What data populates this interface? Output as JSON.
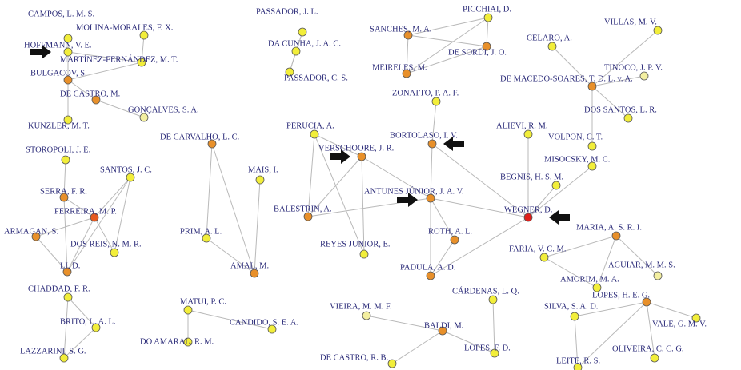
{
  "nodes": [
    {
      "label": "CAMPOS, L. M. S."
    },
    {
      "label": "MOLINA-MORALES, F. X."
    },
    {
      "label": "HOFFMANN, V. E."
    },
    {
      "label": "MARTÍNEZ-FERNÁNDEZ, M. T."
    },
    {
      "label": "BULGACOV, S."
    },
    {
      "label": "DE CASTRO, M."
    },
    {
      "label": "GONÇALVES, S. A."
    },
    {
      "label": "KUNZLER, M. T."
    },
    {
      "label": "STOROPOLI, J. E."
    },
    {
      "label": "SANTOS, J. C."
    },
    {
      "label": "SERRA, F. R."
    },
    {
      "label": "FERREIRA, M. P."
    },
    {
      "label": "ARMAGAN, S."
    },
    {
      "label": "DOS REIS, N. M. R."
    },
    {
      "label": "LI, D."
    },
    {
      "label": "CHADDAD, F. R."
    },
    {
      "label": "BRITO, L. A. L."
    },
    {
      "label": "LAZZARINI, S. G."
    },
    {
      "label": "PASSADOR, J. L."
    },
    {
      "label": "DA CUNHA, J. A. C."
    },
    {
      "label": "PASSADOR, C. S."
    },
    {
      "label": "SANCHES, M. A."
    },
    {
      "label": "PICCHIAI, D."
    },
    {
      "label": "DE SORDI, J. O."
    },
    {
      "label": "MEIRELES, M."
    },
    {
      "label": "CELARO, A."
    },
    {
      "label": "VILLAS, M. V."
    },
    {
      "label": "TINOCO, J. P. V."
    },
    {
      "label": "DE MACEDO-SOARES, T. D. L. v. A."
    },
    {
      "label": "DOS SANTOS, L. R."
    },
    {
      "label": "ZONATTO, P. A. F."
    },
    {
      "label": "PERUCIA, A."
    },
    {
      "label": "DE CARVALHO, L. C."
    },
    {
      "label": "BORTOLASO, I. V."
    },
    {
      "label": "ALIEVI, R. M."
    },
    {
      "label": "VOLPON, C. T."
    },
    {
      "label": "VERSCHOORE, J. R."
    },
    {
      "label": "MISOCSKY, M. C."
    },
    {
      "label": "MAIS, I."
    },
    {
      "label": "BEGNIS, H. S. M."
    },
    {
      "label": "ANTUNES JÚNIOR, J. A. V."
    },
    {
      "label": "WEGNER, D."
    },
    {
      "label": "BALESTRIN, A."
    },
    {
      "label": "MARIA, A. S. R. I."
    },
    {
      "label": "PRIM, A. L."
    },
    {
      "label": "ROTH, A. L."
    },
    {
      "label": "REYES JUNIOR, E."
    },
    {
      "label": "FARIA, V. C. M."
    },
    {
      "label": "AGUIAR, M. M. S."
    },
    {
      "label": "AMAL, M."
    },
    {
      "label": "PADULA, A. D."
    },
    {
      "label": "AMORIM, M. A."
    },
    {
      "label": "CÁRDENAS, L. Q."
    },
    {
      "label": "LOPES, H. E. G."
    },
    {
      "label": "MATUI, P. C."
    },
    {
      "label": "VIEIRA, M. M. F."
    },
    {
      "label": "SILVA, S. A. D."
    },
    {
      "label": "CANDIDO, S. E. A."
    },
    {
      "label": "BALDI, M."
    },
    {
      "label": "VALE, G. M. V."
    },
    {
      "label": "DO AMARAL, R. M."
    },
    {
      "label": "LOPES, F. D."
    },
    {
      "label": "OLIVEIRA, C. C. G."
    },
    {
      "label": "DE CASTRO, R. B."
    },
    {
      "label": "LEITE, R. S."
    }
  ]
}
